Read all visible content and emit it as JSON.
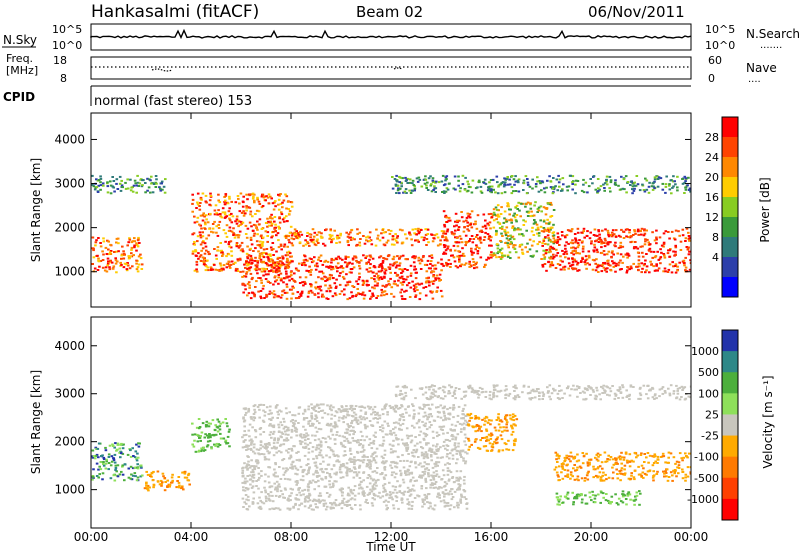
{
  "header": {
    "station": "Hankasalmi (fitACF)",
    "beam": "Beam 02",
    "date": "06/Nov/2011"
  },
  "noise_panel": {
    "left_label": "N.Sky",
    "right_label": "N.Search",
    "left_ticks": [
      "10^5",
      "10^0"
    ],
    "right_ticks": [
      "10^5",
      "10^0"
    ],
    "right_dotted_mark": "......."
  },
  "freq_panel": {
    "left_label_line1": "Freq.",
    "left_label_line2": "[MHz]",
    "left_ticks": [
      "18",
      "8"
    ],
    "right_ticks": [
      "60",
      "0"
    ],
    "right_label": "Nave",
    "right_dotted_mark": "...."
  },
  "cpid_panel": {
    "label": "CPID",
    "text": "normal (fast stereo) 153"
  },
  "chart_data": [
    {
      "type": "heatmap",
      "title": "",
      "ylabel": "Slant Range [km]",
      "xlabel": "",
      "ylim": [
        200,
        4600
      ],
      "yticks": [
        "1000",
        "2000",
        "3000",
        "4000"
      ],
      "colorbar": {
        "label": "Power [dB]",
        "ticks": [
          "28",
          "24",
          "20",
          "16",
          "12",
          "8",
          "4"
        ],
        "colors": [
          "#ff0000",
          "#ff4400",
          "#ff8800",
          "#ffcc00",
          "#88cc22",
          "#3a9a3a",
          "#2f7a7a",
          "#2c3faa",
          "#0000ff"
        ]
      },
      "scatter_bands": [
        {
          "from": "00:00",
          "to": "02:00",
          "range_km": [
            1000,
            1800
          ],
          "level": "high"
        },
        {
          "from": "00:00",
          "to": "03:00",
          "range_km": [
            2800,
            3200
          ],
          "level": "low"
        },
        {
          "from": "04:00",
          "to": "08:00",
          "range_km": [
            1000,
            2800
          ],
          "level": "high"
        },
        {
          "from": "06:00",
          "to": "14:00",
          "range_km": [
            400,
            1400
          ],
          "level": "very-high"
        },
        {
          "from": "08:00",
          "to": "14:00",
          "range_km": [
            1600,
            2000
          ],
          "level": "high"
        },
        {
          "from": "14:00",
          "to": "16:00",
          "range_km": [
            1100,
            2400
          ],
          "level": "very-high"
        },
        {
          "from": "16:00",
          "to": "18:30",
          "range_km": [
            1300,
            2600
          ],
          "level": "medium"
        },
        {
          "from": "18:00",
          "to": "24:00",
          "range_km": [
            1000,
            2000
          ],
          "level": "very-high"
        },
        {
          "from": "12:00",
          "to": "24:00",
          "range_km": [
            2800,
            3200
          ],
          "level": "low"
        }
      ]
    },
    {
      "type": "heatmap",
      "title": "",
      "ylabel": "Slant Range [km]",
      "xlabel": "Time UT",
      "ylim": [
        200,
        4600
      ],
      "yticks": [
        "1000",
        "2000",
        "3000",
        "4000"
      ],
      "xticks": [
        "00:00",
        "04:00",
        "08:00",
        "12:00",
        "16:00",
        "20:00",
        "00:00"
      ],
      "colorbar": {
        "label": "Velocity [m s⁻¹]",
        "ticks": [
          "1000",
          "500",
          "100",
          "25",
          "-25",
          "-100",
          "-500",
          "-1000"
        ],
        "colors": [
          "#2233aa",
          "#2e8888",
          "#4caf3c",
          "#8ee05a",
          "#c8c6bd",
          "#ffaa00",
          "#ff7a00",
          "#ff4000",
          "#ff0000"
        ]
      },
      "scatter_bands": [
        {
          "from": "00:00",
          "to": "02:00",
          "range_km": [
            1200,
            2000
          ],
          "velocity": "positive"
        },
        {
          "from": "02:00",
          "to": "04:00",
          "range_km": [
            1000,
            1400
          ],
          "velocity": "-100"
        },
        {
          "from": "04:00",
          "to": "05:30",
          "range_km": [
            1800,
            2500
          ],
          "velocity": "100"
        },
        {
          "from": "06:00",
          "to": "15:00",
          "range_km": [
            600,
            2800
          ],
          "velocity": "ground-scatter"
        },
        {
          "from": "12:00",
          "to": "24:00",
          "range_km": [
            2900,
            3200
          ],
          "velocity": "ground-scatter"
        },
        {
          "from": "15:00",
          "to": "17:00",
          "range_km": [
            1800,
            2600
          ],
          "velocity": "-100"
        },
        {
          "from": "18:30",
          "to": "24:00",
          "range_km": [
            1200,
            1800
          ],
          "velocity": "-100"
        },
        {
          "from": "18:30",
          "to": "22:00",
          "range_km": [
            700,
            1000
          ],
          "velocity": "100"
        }
      ]
    }
  ]
}
